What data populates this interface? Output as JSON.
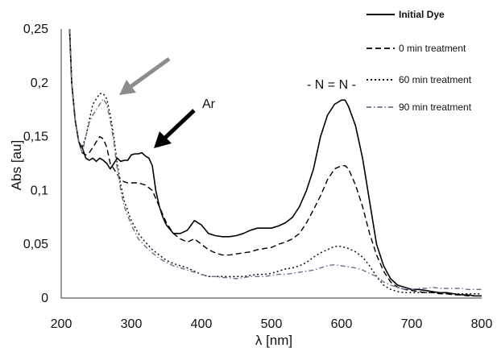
{
  "chart_data": {
    "type": "line",
    "title": "",
    "xlabel": "λ [nm]",
    "ylabel": "Abs [au]",
    "xlim": [
      200,
      800
    ],
    "ylim": [
      0,
      0.25
    ],
    "xticks": [
      "200",
      "300",
      "400",
      "500",
      "600",
      "700",
      "800"
    ],
    "yticks": [
      "0",
      "0,05",
      "0,1",
      "0,15",
      "0,2",
      "0,25"
    ],
    "grid": false,
    "legend_position": "top-right",
    "annotations": [
      {
        "text": "- N = N -"
      },
      {
        "text": "Ar"
      }
    ],
    "series": [
      {
        "name": "Initial Dye",
        "color": "#000000",
        "style": "solid",
        "x": [
          212,
          215,
          220,
          225,
          230,
          235,
          240,
          245,
          250,
          255,
          260,
          265,
          270,
          275,
          280,
          285,
          290,
          295,
          300,
          305,
          310,
          315,
          320,
          325,
          330,
          335,
          340,
          345,
          350,
          360,
          370,
          380,
          390,
          400,
          410,
          420,
          430,
          440,
          450,
          460,
          470,
          480,
          490,
          500,
          510,
          520,
          530,
          540,
          550,
          560,
          570,
          580,
          590,
          600,
          605,
          610,
          620,
          630,
          640,
          650,
          660,
          670,
          680,
          690,
          700,
          710,
          720,
          730,
          740,
          750,
          760,
          770,
          780,
          790,
          800
        ],
        "y": [
          0.25,
          0.2,
          0.165,
          0.145,
          0.14,
          0.13,
          0.128,
          0.13,
          0.127,
          0.13,
          0.128,
          0.125,
          0.12,
          0.125,
          0.13,
          0.127,
          0.128,
          0.128,
          0.133,
          0.134,
          0.134,
          0.135,
          0.132,
          0.13,
          0.123,
          0.1,
          0.085,
          0.075,
          0.068,
          0.06,
          0.06,
          0.063,
          0.072,
          0.068,
          0.06,
          0.058,
          0.057,
          0.057,
          0.058,
          0.06,
          0.063,
          0.065,
          0.065,
          0.065,
          0.067,
          0.07,
          0.075,
          0.085,
          0.1,
          0.12,
          0.15,
          0.17,
          0.18,
          0.184,
          0.184,
          0.178,
          0.16,
          0.13,
          0.09,
          0.05,
          0.03,
          0.018,
          0.012,
          0.01,
          0.008,
          0.008,
          0.007,
          0.006,
          0.005,
          0.005,
          0.004,
          0.003,
          0.003,
          0.002,
          0.002
        ]
      },
      {
        "name": "0 min treatment",
        "color": "#000000",
        "style": "dashed",
        "x": [
          212,
          215,
          220,
          225,
          230,
          235,
          240,
          245,
          250,
          255,
          260,
          265,
          270,
          275,
          280,
          285,
          290,
          295,
          300,
          305,
          310,
          320,
          330,
          340,
          350,
          360,
          370,
          380,
          390,
          400,
          410,
          420,
          430,
          440,
          450,
          460,
          470,
          480,
          490,
          500,
          510,
          520,
          530,
          540,
          550,
          560,
          570,
          580,
          590,
          600,
          605,
          610,
          620,
          630,
          640,
          650,
          660,
          670,
          680,
          690,
          700,
          710,
          720,
          730,
          740,
          750,
          760,
          770,
          780,
          790,
          800
        ],
        "y": [
          0.25,
          0.2,
          0.165,
          0.145,
          0.135,
          0.133,
          0.135,
          0.14,
          0.145,
          0.15,
          0.148,
          0.14,
          0.125,
          0.12,
          0.115,
          0.11,
          0.108,
          0.107,
          0.107,
          0.107,
          0.107,
          0.105,
          0.1,
          0.085,
          0.07,
          0.06,
          0.055,
          0.052,
          0.055,
          0.05,
          0.045,
          0.042,
          0.04,
          0.04,
          0.041,
          0.042,
          0.043,
          0.045,
          0.046,
          0.047,
          0.05,
          0.052,
          0.055,
          0.06,
          0.07,
          0.082,
          0.095,
          0.11,
          0.12,
          0.123,
          0.123,
          0.12,
          0.105,
          0.085,
          0.06,
          0.04,
          0.025,
          0.015,
          0.01,
          0.008,
          0.007,
          0.006,
          0.005,
          0.005,
          0.004,
          0.004,
          0.003,
          0.003,
          0.002,
          0.002,
          0.002
        ]
      },
      {
        "name": "60 min treatment",
        "color": "#111111",
        "style": "dotted",
        "x": [
          212,
          215,
          220,
          225,
          230,
          235,
          240,
          245,
          250,
          255,
          260,
          265,
          270,
          275,
          280,
          285,
          290,
          300,
          310,
          320,
          330,
          340,
          350,
          360,
          370,
          380,
          390,
          400,
          410,
          420,
          430,
          440,
          450,
          460,
          470,
          480,
          490,
          500,
          510,
          520,
          530,
          540,
          550,
          560,
          570,
          580,
          590,
          600,
          610,
          620,
          630,
          640,
          650,
          660,
          670,
          680,
          690,
          700,
          710,
          720,
          730,
          740,
          750,
          760,
          770,
          780,
          790,
          800
        ],
        "y": [
          0.25,
          0.2,
          0.165,
          0.145,
          0.14,
          0.15,
          0.165,
          0.18,
          0.185,
          0.19,
          0.19,
          0.185,
          0.17,
          0.15,
          0.125,
          0.105,
          0.09,
          0.072,
          0.06,
          0.052,
          0.045,
          0.04,
          0.035,
          0.032,
          0.03,
          0.028,
          0.025,
          0.022,
          0.02,
          0.02,
          0.02,
          0.02,
          0.02,
          0.02,
          0.021,
          0.022,
          0.022,
          0.023,
          0.025,
          0.027,
          0.028,
          0.03,
          0.033,
          0.038,
          0.042,
          0.045,
          0.048,
          0.048,
          0.046,
          0.043,
          0.038,
          0.03,
          0.02,
          0.012,
          0.008,
          0.006,
          0.005,
          0.005,
          0.005,
          0.005,
          0.005,
          0.005,
          0.004,
          0.004,
          0.004,
          0.004,
          0.004,
          0.004
        ]
      },
      {
        "name": "90 min treatment",
        "color": "#6e6e8c",
        "style": "dashdot",
        "x": [
          212,
          215,
          220,
          225,
          230,
          235,
          240,
          245,
          250,
          255,
          260,
          265,
          270,
          275,
          280,
          285,
          290,
          300,
          310,
          320,
          330,
          340,
          350,
          360,
          370,
          380,
          390,
          400,
          410,
          420,
          430,
          440,
          450,
          460,
          470,
          480,
          490,
          500,
          510,
          520,
          530,
          540,
          550,
          560,
          570,
          580,
          590,
          600,
          610,
          620,
          630,
          640,
          650,
          660,
          670,
          680,
          690,
          700,
          710,
          720,
          730,
          740,
          750,
          760,
          770,
          780,
          790,
          800
        ],
        "y": [
          0.25,
          0.2,
          0.165,
          0.145,
          0.135,
          0.15,
          0.163,
          0.17,
          0.175,
          0.18,
          0.185,
          0.18,
          0.165,
          0.145,
          0.12,
          0.1,
          0.085,
          0.068,
          0.055,
          0.048,
          0.042,
          0.037,
          0.033,
          0.03,
          0.028,
          0.026,
          0.024,
          0.022,
          0.02,
          0.02,
          0.019,
          0.019,
          0.018,
          0.019,
          0.02,
          0.02,
          0.02,
          0.021,
          0.022,
          0.022,
          0.023,
          0.024,
          0.025,
          0.026,
          0.028,
          0.03,
          0.031,
          0.03,
          0.029,
          0.028,
          0.026,
          0.023,
          0.02,
          0.015,
          0.012,
          0.01,
          0.008,
          0.008,
          0.009,
          0.009,
          0.01,
          0.009,
          0.009,
          0.009,
          0.009,
          0.008,
          0.008,
          0.008
        ]
      }
    ]
  }
}
